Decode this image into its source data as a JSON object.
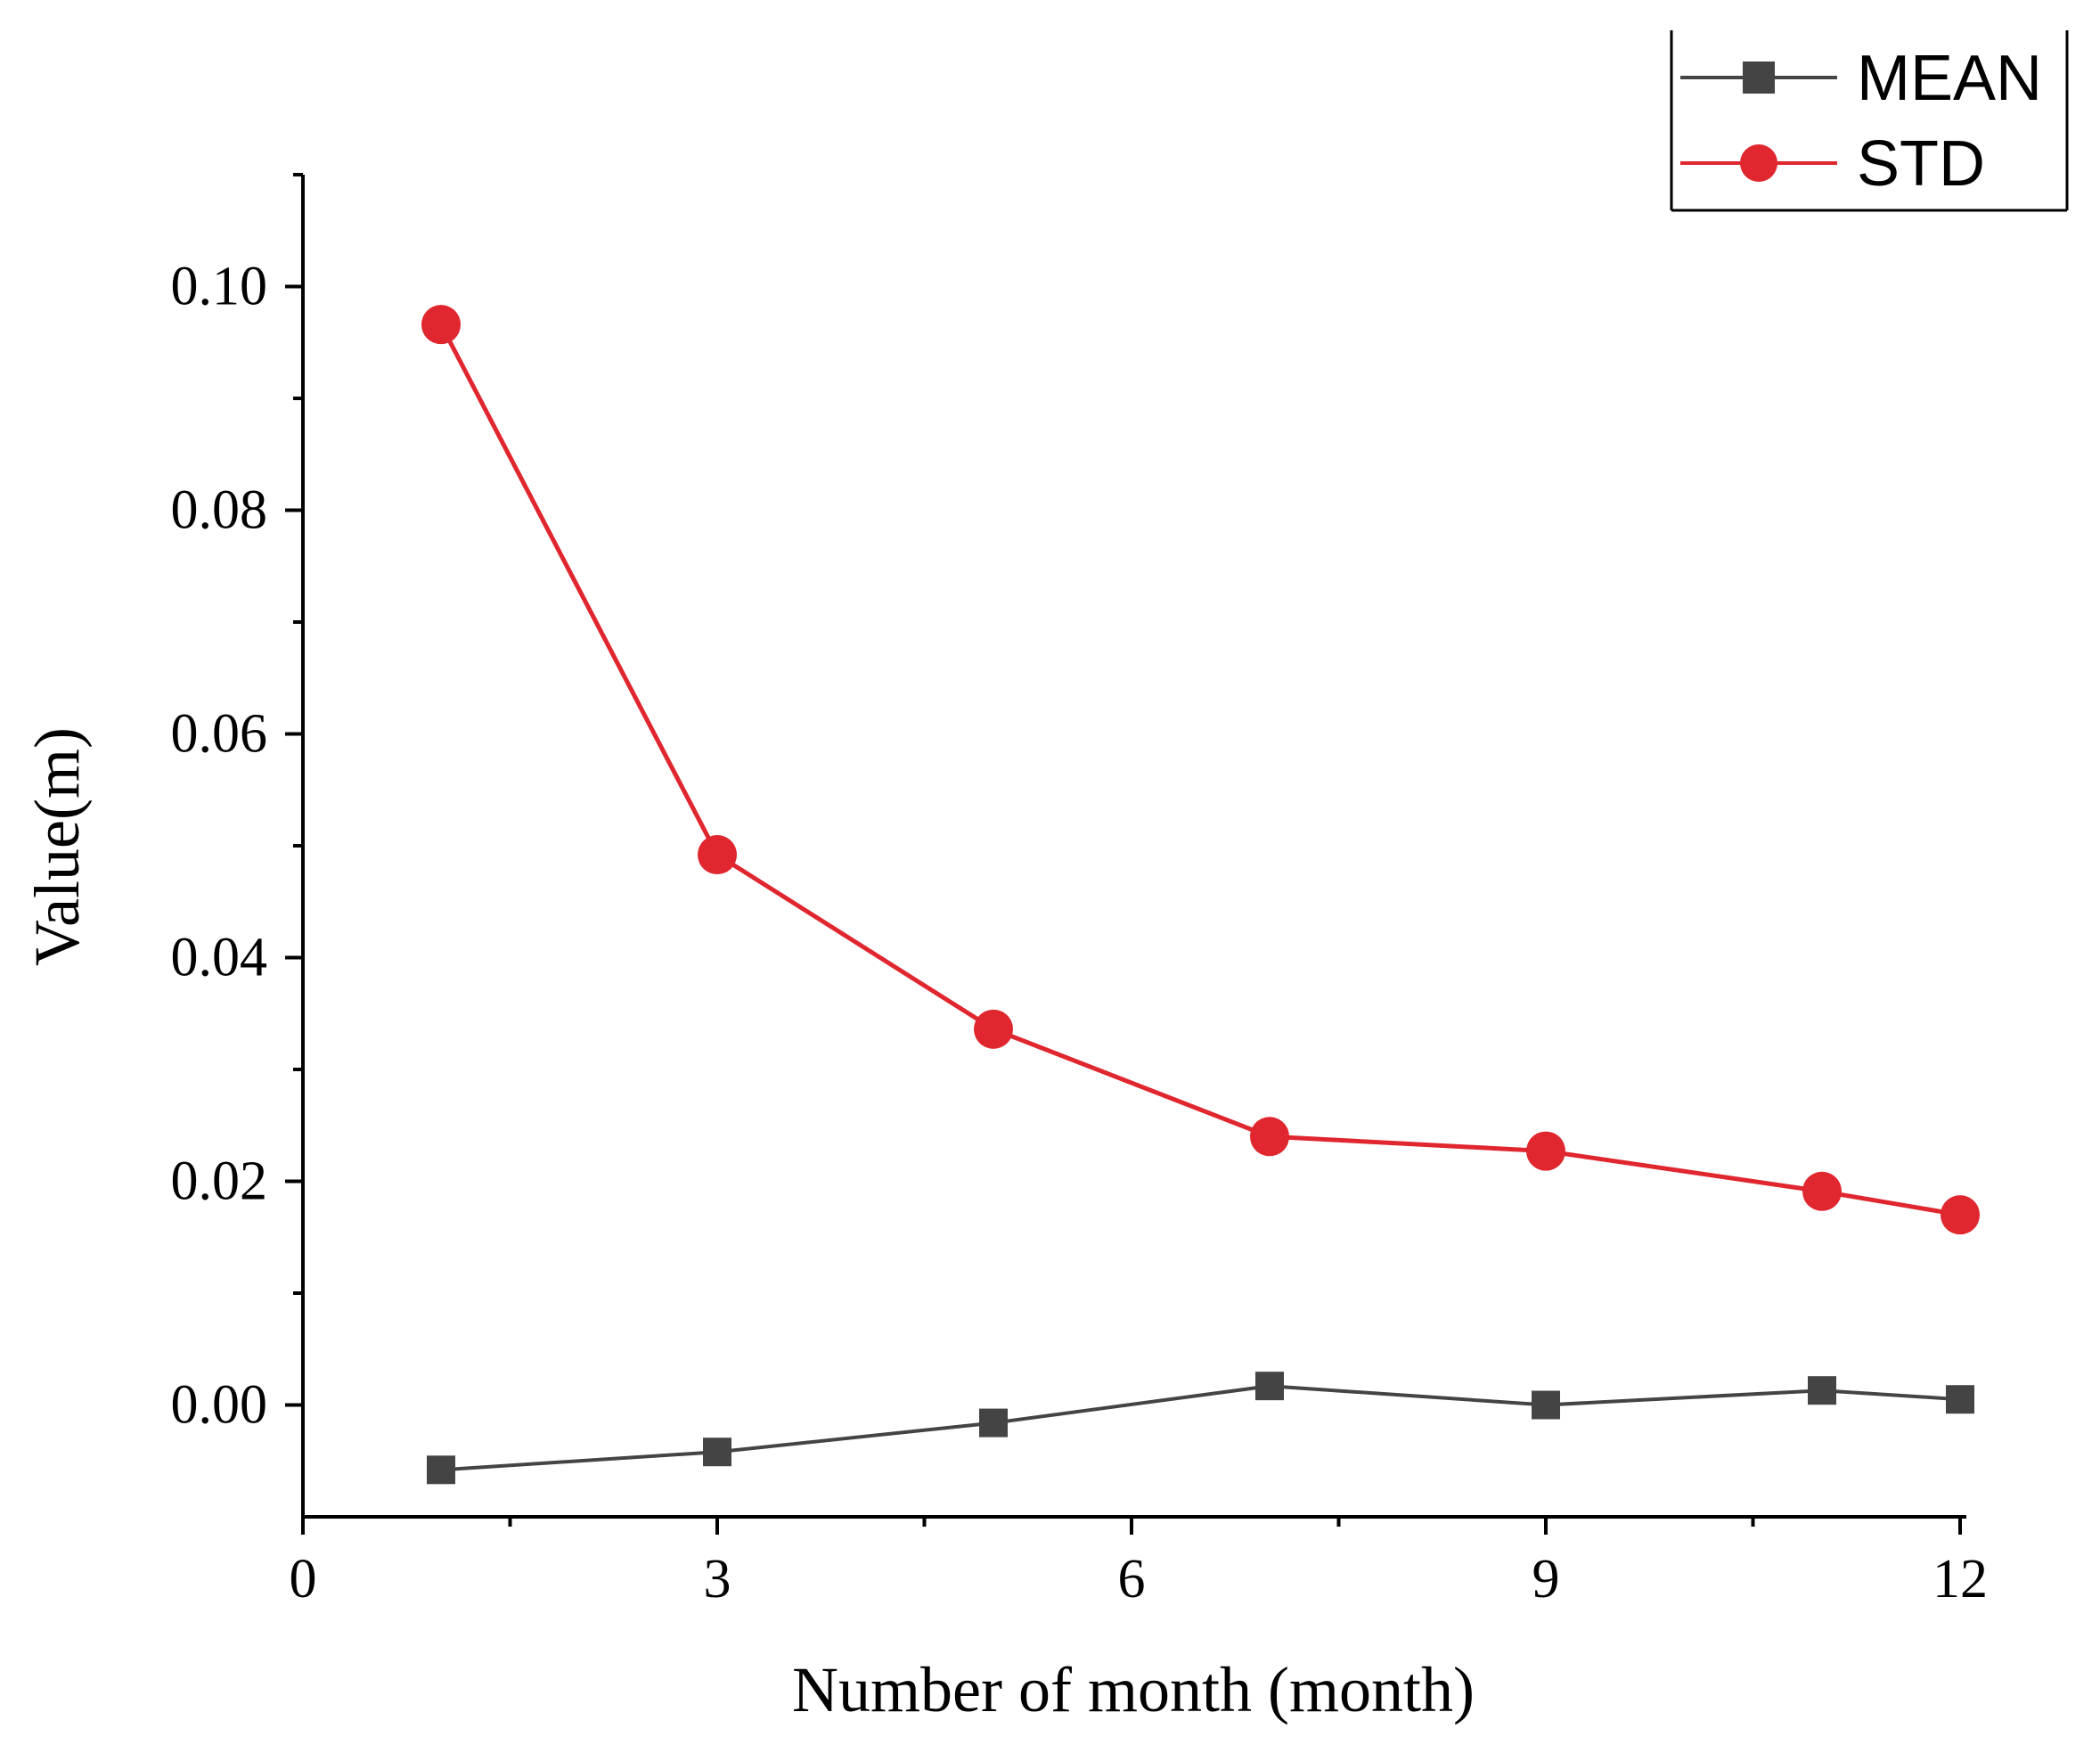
{
  "chart_data": {
    "type": "line",
    "title": "",
    "xlabel": "Number of month (month)",
    "ylabel": "Value(m)",
    "xlim": [
      0,
      12
    ],
    "ylim": [
      -0.01,
      0.11
    ],
    "x_ticks": [
      0,
      3,
      6,
      9,
      12
    ],
    "x_tick_labels": [
      "0",
      "3",
      "6",
      "9",
      "12"
    ],
    "y_ticks": [
      0.0,
      0.02,
      0.04,
      0.06,
      0.08,
      0.1
    ],
    "y_tick_labels": [
      "0.00",
      "0.02",
      "0.04",
      "0.06",
      "0.08",
      "0.10"
    ],
    "grid": false,
    "legend_position": "top-right",
    "x": [
      1,
      3,
      5,
      7,
      9,
      11,
      12
    ],
    "series": [
      {
        "name": "MEAN",
        "color": "#444444",
        "marker": "square",
        "values": [
          -0.0058,
          -0.0042,
          -0.0016,
          0.0017,
          0.0,
          0.0013,
          0.0005
        ]
      },
      {
        "name": "STD",
        "color": "#e0262e",
        "marker": "circle",
        "values": [
          0.0966,
          0.0492,
          0.0336,
          0.024,
          0.0227,
          0.0191,
          0.017
        ]
      }
    ]
  }
}
